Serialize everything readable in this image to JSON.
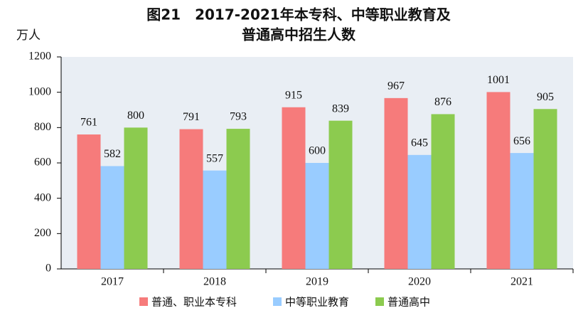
{
  "chart_data": {
    "type": "bar",
    "title": [
      "图21　2017-2021年本专科、中等职业教育及",
      "普通高中招生人数"
    ],
    "y_label": "万人",
    "categories": [
      "2017",
      "2018",
      "2019",
      "2020",
      "2021"
    ],
    "series": [
      {
        "name": "普通、职业本专科",
        "color": "#f67b7b",
        "values": [
          761,
          791,
          915,
          967,
          1001
        ]
      },
      {
        "name": "中等职业教育",
        "color": "#99ccff",
        "values": [
          582,
          557,
          600,
          645,
          656
        ]
      },
      {
        "name": "普通高中",
        "color": "#8ccb4f",
        "values": [
          800,
          793,
          839,
          876,
          905
        ]
      }
    ],
    "ylim": [
      0,
      1200
    ],
    "yticks": [
      0,
      200,
      400,
      600,
      800,
      1000,
      1200
    ],
    "grid": false,
    "legend": "bottom"
  }
}
